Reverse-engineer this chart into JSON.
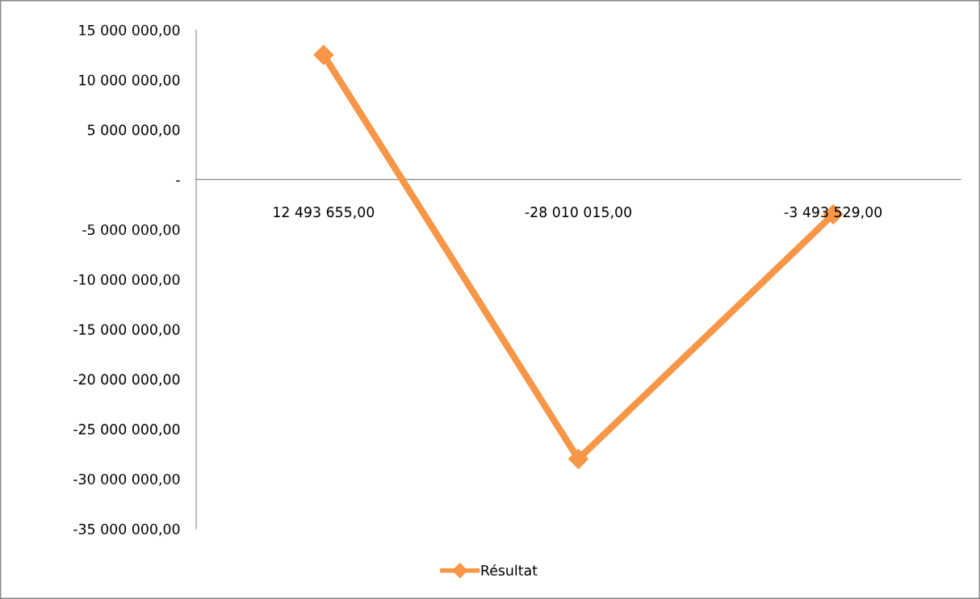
{
  "chart_data": {
    "type": "line",
    "categories": [
      "12 493 655,00",
      "-28 010 015,00",
      "-3 493 529,00"
    ],
    "series": [
      {
        "name": "Résultat",
        "color": "#f79646",
        "values": [
          12493655,
          -28010015,
          -3493529
        ]
      }
    ],
    "ylim": [
      -35000000,
      15000000
    ],
    "yticks": [
      {
        "value": 15000000,
        "label": "15 000 000,00"
      },
      {
        "value": 10000000,
        "label": "10 000 000,00"
      },
      {
        "value": 5000000,
        "label": "5 000 000,00"
      },
      {
        "value": 0,
        "label": "-"
      },
      {
        "value": -5000000,
        "label": "-5 000 000,00"
      },
      {
        "value": -10000000,
        "label": "-10 000 000,00"
      },
      {
        "value": -15000000,
        "label": "-15 000 000,00"
      },
      {
        "value": -20000000,
        "label": "-20 000 000,00"
      },
      {
        "value": -25000000,
        "label": "-25 000 000,00"
      },
      {
        "value": -30000000,
        "label": "-30 000 000,00"
      },
      {
        "value": -35000000,
        "label": "-35 000 000,00"
      }
    ],
    "marker": "diamond",
    "line_style": "solid",
    "grid": false,
    "legend": "bottom"
  }
}
